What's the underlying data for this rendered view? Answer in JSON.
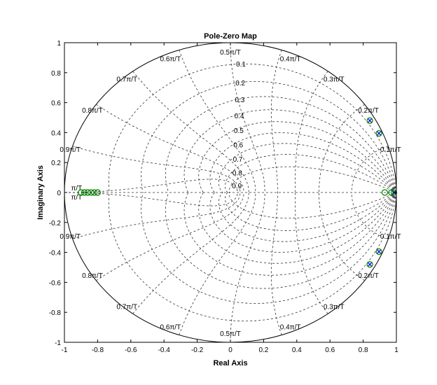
{
  "chart_data": {
    "type": "scatter",
    "title": "Pole-Zero Map",
    "xlabel": "Real Axis",
    "ylabel": "Imaginary Axis",
    "xlim": [
      -1,
      1
    ],
    "ylim": [
      -1,
      1
    ],
    "xticks": [
      "-1",
      "-0.8",
      "-0.6",
      "-0.4",
      "-0.2",
      "0",
      "0.2",
      "0.4",
      "0.6",
      "0.8",
      "1"
    ],
    "yticks": [
      "1",
      "0.8",
      "0.6",
      "0.4",
      "0.2",
      "0",
      "-0.2",
      "-0.4",
      "-0.6",
      "-0.8",
      "-1"
    ],
    "grid": "zgrid",
    "damping_labels": [
      "0.1",
      "0.2",
      "0.3",
      "0.4",
      "0.5",
      "0.6",
      "0.7",
      "0.8",
      "0.9"
    ],
    "frequency_labels": {
      "upper": [
        "0.1π/T",
        "0.2π/T",
        "0.3π/T",
        "0.4π/T",
        "0.5π/T",
        "0.6π/T",
        "0.7π/T",
        "0.8π/T",
        "0.9π/T",
        "π/T"
      ],
      "lower": [
        "0.1π/T",
        "0.2π/T",
        "0.3π/T",
        "0.4π/T",
        "0.5π/T",
        "0.6π/T",
        "0.7π/T",
        "0.8π/T",
        "0.9π/T",
        "π/T"
      ]
    },
    "series": [
      {
        "marker": "x",
        "color": "#0000ff",
        "points": [
          [
            0.84,
            0.48
          ],
          [
            0.895,
            0.395
          ],
          [
            0.895,
            -0.395
          ],
          [
            0.84,
            -0.48
          ],
          [
            0.985,
            0.0
          ]
        ]
      },
      {
        "marker": "o",
        "color": "#008000",
        "points": [
          [
            0.84,
            0.48
          ],
          [
            0.895,
            0.395
          ],
          [
            0.895,
            -0.395
          ],
          [
            0.84,
            -0.48
          ],
          [
            0.93,
            0.0
          ],
          [
            0.97,
            0.0
          ],
          [
            0.985,
            0.0
          ],
          [
            -0.9,
            0.0
          ],
          [
            -0.88,
            0.0
          ],
          [
            -0.86,
            0.0
          ],
          [
            -0.84,
            0.0
          ],
          [
            -0.82,
            0.0
          ],
          [
            -0.8,
            0.0
          ]
        ]
      }
    ]
  }
}
